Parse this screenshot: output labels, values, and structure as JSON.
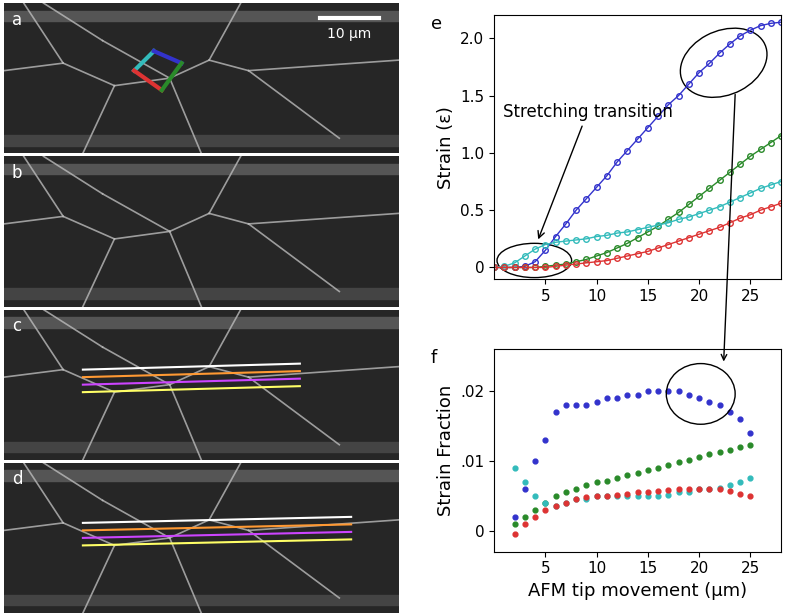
{
  "panels": [
    {
      "label": "a",
      "scale_bar": "10 µm"
    },
    {
      "label": "b"
    },
    {
      "label": "c"
    },
    {
      "label": "d"
    }
  ],
  "chart_data": [
    {
      "panel_label": "e",
      "type": "line",
      "y_label": "Strain (ε)",
      "xlim": [
        0,
        28
      ],
      "xticks": [
        5,
        10,
        15,
        20,
        25
      ],
      "ylim": [
        -0.1,
        2.2
      ],
      "yticks": [
        0,
        0.5,
        {
          "value": 1,
          "label": "1.0"
        },
        1.5,
        {
          "value": 2,
          "label": "2.0"
        }
      ],
      "annotation": "Stretching transition",
      "x": [
        0,
        1,
        2,
        3,
        4,
        5,
        6,
        7,
        8,
        9,
        10,
        11,
        12,
        13,
        14,
        15,
        16,
        17,
        18,
        19,
        20,
        21,
        22,
        23,
        24,
        25,
        26,
        27,
        28
      ],
      "series": [
        {
          "color": "#3333cc",
          "marker": "open_circle",
          "values": [
            0,
            0,
            0,
            0.01,
            0.05,
            0.15,
            0.27,
            0.38,
            0.5,
            0.6,
            0.7,
            0.8,
            0.92,
            1.02,
            1.12,
            1.22,
            1.32,
            1.42,
            1.5,
            1.6,
            1.7,
            1.78,
            1.87,
            1.95,
            2.02,
            2.07,
            2.11,
            2.13,
            2.14
          ]
        },
        {
          "color": "#2a8a2a",
          "marker": "open_circle",
          "values": [
            0,
            0,
            0,
            0,
            0,
            0.01,
            0.02,
            0.03,
            0.05,
            0.07,
            0.1,
            0.13,
            0.17,
            0.21,
            0.26,
            0.31,
            0.36,
            0.42,
            0.48,
            0.55,
            0.62,
            0.69,
            0.76,
            0.83,
            0.9,
            0.97,
            1.03,
            1.09,
            1.15
          ]
        },
        {
          "color": "#33bbbb",
          "marker": "open_circle",
          "values": [
            0,
            0.01,
            0.04,
            0.1,
            0.16,
            0.2,
            0.22,
            0.23,
            0.24,
            0.25,
            0.27,
            0.28,
            0.3,
            0.31,
            0.33,
            0.35,
            0.37,
            0.39,
            0.42,
            0.44,
            0.47,
            0.5,
            0.53,
            0.57,
            0.61,
            0.65,
            0.69,
            0.72,
            0.75
          ]
        },
        {
          "color": "#dd3333",
          "marker": "open_circle",
          "values": [
            0,
            0,
            0,
            0,
            0,
            0,
            0.01,
            0.02,
            0.03,
            0.04,
            0.05,
            0.06,
            0.08,
            0.1,
            0.12,
            0.14,
            0.17,
            0.2,
            0.23,
            0.26,
            0.29,
            0.32,
            0.35,
            0.39,
            0.43,
            0.46,
            0.5,
            0.53,
            0.56
          ]
        }
      ]
    },
    {
      "panel_label": "f",
      "type": "scatter",
      "x_label": "AFM tip movement (µm)",
      "y_label": "Strain Fraction",
      "xlim": [
        0,
        28
      ],
      "xticks": [
        5,
        10,
        15,
        20,
        25
      ],
      "ylim": [
        -0.003,
        0.026
      ],
      "yticks": [
        0,
        {
          "value": 0.01,
          "label": ".01"
        },
        {
          "value": 0.02,
          "label": ".02"
        }
      ],
      "x": [
        2,
        3,
        4,
        5,
        6,
        7,
        8,
        9,
        10,
        11,
        12,
        13,
        14,
        15,
        16,
        17,
        18,
        19,
        20,
        21,
        22,
        23,
        24,
        25
      ],
      "series": [
        {
          "color": "#3333cc",
          "marker": "circle",
          "values": [
            0.002,
            0.006,
            0.01,
            0.013,
            0.017,
            0.018,
            0.018,
            0.018,
            0.0185,
            0.019,
            0.019,
            0.0195,
            0.0195,
            0.02,
            0.02,
            0.02,
            0.02,
            0.0195,
            0.019,
            0.0185,
            0.018,
            0.017,
            0.016,
            0.014
          ]
        },
        {
          "color": "#2a8a2a",
          "marker": "circle",
          "values": [
            0.001,
            0.002,
            0.003,
            0.004,
            0.005,
            0.0055,
            0.006,
            0.0065,
            0.007,
            0.0072,
            0.0075,
            0.008,
            0.0083,
            0.0087,
            0.009,
            0.0094,
            0.0098,
            0.0102,
            0.0106,
            0.011,
            0.0113,
            0.0116,
            0.012,
            0.0123
          ]
        },
        {
          "color": "#33bbbb",
          "marker": "circle",
          "values": [
            0.009,
            0.007,
            0.005,
            0.004,
            0.0035,
            0.004,
            0.0045,
            0.0045,
            0.005,
            0.005,
            0.005,
            0.005,
            0.005,
            0.005,
            0.005,
            0.0052,
            0.0055,
            0.0055,
            0.006,
            0.006,
            0.0062,
            0.0065,
            0.007,
            0.0075
          ]
        },
        {
          "color": "#dd3333",
          "marker": "circle",
          "values": [
            -0.0005,
            0.001,
            0.002,
            0.003,
            0.0035,
            0.004,
            0.0045,
            0.0048,
            0.005,
            0.005,
            0.0052,
            0.0053,
            0.0055,
            0.0055,
            0.0057,
            0.0058,
            0.006,
            0.006,
            0.006,
            0.006,
            0.006,
            0.0057,
            0.0053,
            0.005
          ]
        }
      ]
    }
  ]
}
